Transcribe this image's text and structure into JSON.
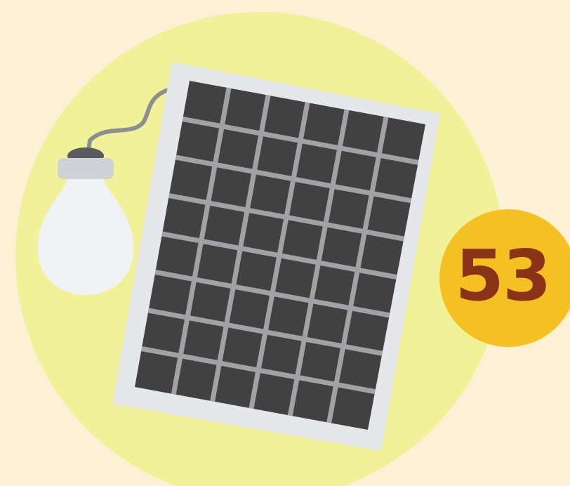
{
  "badge": {
    "number": "53"
  },
  "colors": {
    "page_background": "#fcf1d5",
    "circle_background": "#f1f199",
    "panel_frame": "#e5e7ea",
    "panel_cells": "#414141",
    "panel_grid_lines": "#a0a2a5",
    "bulb_glass": "#f0f2f5",
    "bulb_base": "#cfd2d6",
    "bulb_cap": "#5a5b5e",
    "cord": "#8d8e91",
    "badge_fill": "#f5c022",
    "badge_text": "#8b3319"
  },
  "icons": {
    "illustration": "solar-panel-powering-light-bulb",
    "panel": "solar-panel-icon",
    "bulb": "light-bulb-icon"
  }
}
